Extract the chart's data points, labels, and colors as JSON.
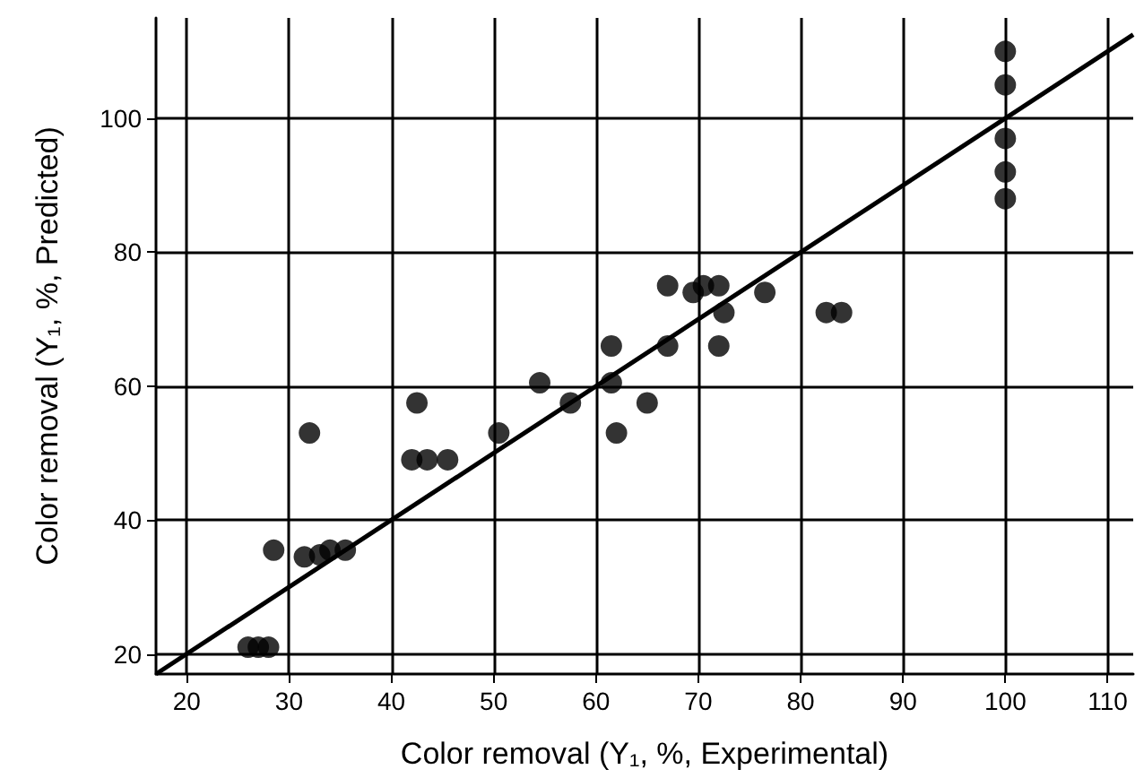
{
  "chart_data": {
    "type": "scatter",
    "xlabel": "Color removal (Y₁, %, Experimental)",
    "ylabel": "Color removal (Y₁, %, Predicted)",
    "xlim": [
      17,
      112.5
    ],
    "ylim": [
      17,
      115
    ],
    "xticks": [
      20,
      30,
      40,
      50,
      60,
      70,
      80,
      90,
      100,
      110
    ],
    "yticks": [
      20,
      40,
      60,
      80,
      100
    ],
    "grid": true,
    "marker": "circle",
    "series": [
      {
        "color": "#000000",
        "x": [
          26,
          27,
          28,
          28.5,
          32,
          31.5,
          33,
          34,
          35.5,
          42.5,
          42,
          43.5,
          45.5,
          50.5,
          54.5,
          57.5,
          61.5,
          61.5,
          62,
          65,
          67,
          67,
          69.5,
          70.5,
          72,
          72,
          72.5,
          76.5,
          82.5,
          84,
          100,
          100,
          100,
          100,
          100
        ],
        "values": [
          21,
          21,
          21,
          35.5,
          53,
          34.5,
          34.8,
          35.5,
          35.5,
          57.5,
          49,
          49,
          49,
          53,
          60.5,
          57.5,
          60.5,
          66,
          53,
          57.5,
          75,
          66,
          74,
          75,
          75,
          66,
          71,
          74,
          71,
          71,
          110,
          105,
          97,
          92,
          88
        ]
      },
      {
        "type": "line",
        "color": "#000000",
        "marker": "none",
        "x": [
          17,
          112.5
        ],
        "values": [
          17,
          112.5
        ]
      }
    ]
  }
}
